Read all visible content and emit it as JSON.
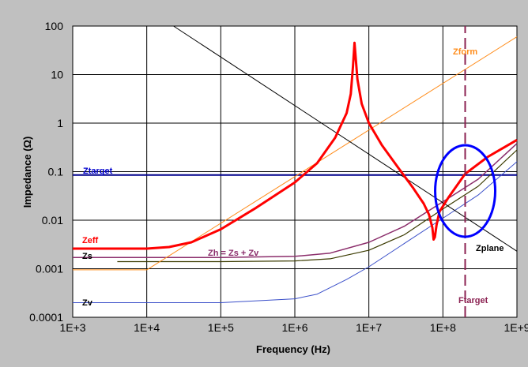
{
  "chart_data": {
    "type": "line",
    "title": "",
    "xlabel": "Frequency (Hz)",
    "ylabel": "Impedance (Ω)",
    "xscale": "log",
    "yscale": "log",
    "xlim": [
      1000,
      1000000000
    ],
    "ylim": [
      0.0001,
      100
    ],
    "grid": true,
    "x_tick_labels": [
      "1E+3",
      "1E+4",
      "1E+5",
      "1E+6",
      "1E+7",
      "1E+8",
      "1E+9"
    ],
    "y_tick_labels": [
      "0.0001",
      "0.001",
      "0.01",
      "0.1",
      "1",
      "10",
      "100"
    ],
    "colors": {
      "background": "#c0c0c0",
      "plot_area": "#ffffff",
      "grid": "#000000",
      "annotation_ellipse": "#0000ff"
    },
    "series": [
      {
        "name": "Ztarget",
        "color": "#00008b",
        "width": 2,
        "x": [
          1000,
          1000000000
        ],
        "y": [
          0.085,
          0.085
        ]
      },
      {
        "name": "Zv",
        "color": "#3a4fc9",
        "width": 1,
        "x": [
          1000,
          100000,
          1000000,
          2000000,
          5000000,
          10000000,
          30000000,
          100000000,
          300000000,
          1000000000
        ],
        "y": [
          0.0002,
          0.0002,
          0.00024,
          0.0003,
          0.0006,
          0.0011,
          0.0033,
          0.011,
          0.033,
          0.16
        ]
      },
      {
        "name": "Zs",
        "color": "#3b3b00",
        "width": 1.2,
        "x": [
          4000,
          100000,
          1000000,
          3000000,
          10000000,
          30000000,
          100000000,
          300000000,
          1000000000
        ],
        "y": [
          0.0014,
          0.0014,
          0.00145,
          0.0016,
          0.0024,
          0.005,
          0.017,
          0.05,
          0.28
        ]
      },
      {
        "name": "Zh = Zs + Zv",
        "color": "#8b2d6b",
        "width": 1.5,
        "x": [
          1000,
          100000,
          1000000,
          3000000,
          10000000,
          30000000,
          100000000,
          300000000,
          1000000000
        ],
        "y": [
          0.0017,
          0.0017,
          0.0018,
          0.0021,
          0.0035,
          0.0075,
          0.024,
          0.07,
          0.38
        ]
      },
      {
        "name": "Zform",
        "color": "#ff8c1a",
        "width": 1,
        "x": [
          1000,
          10000,
          1000000000
        ],
        "y": [
          0.00095,
          0.00095,
          60
        ]
      },
      {
        "name": "Zplane",
        "color": "#000000",
        "width": 1,
        "x": [
          23000,
          1000000000
        ],
        "y": [
          100,
          0.0023
        ]
      },
      {
        "name": "Zeff",
        "color": "#ff0000",
        "width": 3,
        "x": [
          1000,
          10000,
          20000,
          40000,
          100000,
          300000,
          1000000,
          2000000,
          3500000,
          5000000,
          5700000,
          6100000,
          6400000,
          7000000,
          8000000,
          10000000,
          15000000,
          25000000,
          40000000,
          55000000,
          65000000,
          72000000,
          75000000,
          78000000,
          82000000,
          90000000,
          120000000,
          200000000,
          400000000,
          1000000000
        ],
        "y": [
          0.0026,
          0.0026,
          0.0028,
          0.0035,
          0.0065,
          0.018,
          0.06,
          0.15,
          0.5,
          1.6,
          4,
          15,
          45,
          8,
          2.5,
          1,
          0.35,
          0.12,
          0.045,
          0.022,
          0.013,
          0.007,
          0.004,
          0.0045,
          0.008,
          0.015,
          0.03,
          0.09,
          0.2,
          0.45
        ]
      },
      {
        "name": "Ftarget",
        "color": "#8b2252",
        "width": 2,
        "dashed": true,
        "x": [
          200000000,
          200000000
        ],
        "y": [
          0.0001,
          100
        ]
      }
    ],
    "series_labels": {
      "Ztarget": "Ztarget",
      "Zv": "Zv",
      "Zs": "Zs",
      "Zh": "Zh = Zs + Zv",
      "Zform": "Zform",
      "Zplane": "Zplane",
      "Zeff": "Zeff",
      "Ftarget": "Ftarget"
    },
    "annotation": {
      "shape": "ellipse",
      "center": [
        200000000,
        0.04
      ],
      "color": "#0000ff"
    }
  }
}
